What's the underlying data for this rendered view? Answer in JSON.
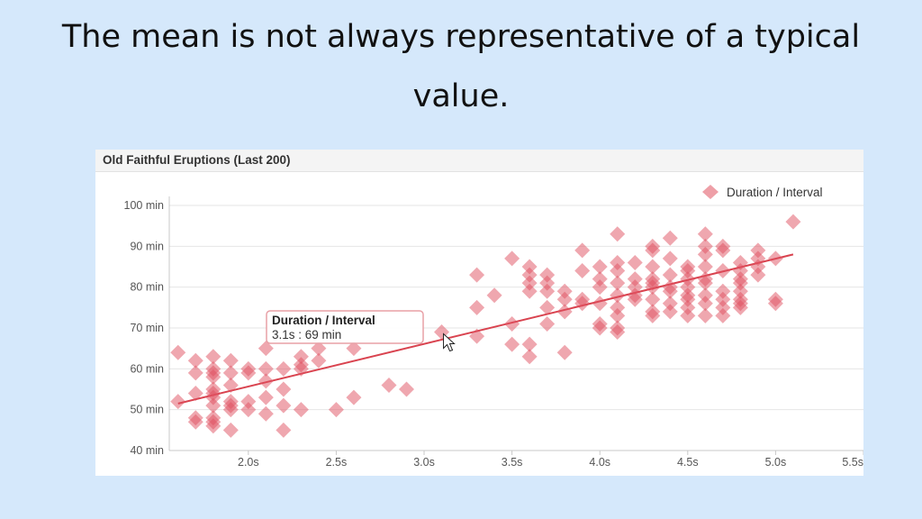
{
  "slide": {
    "title_line1": "The mean is not always representative of a typical",
    "title_line2": "value."
  },
  "colors": {
    "point": "#e0505f",
    "trend": "#d9434f",
    "background": "#d5e8fb"
  },
  "chart_data": {
    "type": "scatter",
    "title": "Old Faithful Eruptions (Last 200)",
    "xlim": [
      1.55,
      5.5
    ],
    "ylim": [
      40,
      100
    ],
    "x_ticks": [
      2.0,
      2.5,
      3.0,
      3.5,
      4.0,
      4.5,
      5.0,
      5.5
    ],
    "x_tick_labels": [
      "2.0s",
      "2.5s",
      "3.0s",
      "3.5s",
      "4.0s",
      "4.5s",
      "5.0s",
      "5.5s"
    ],
    "y_ticks": [
      40,
      50,
      60,
      70,
      80,
      90,
      100
    ],
    "y_tick_labels": [
      "40 min",
      "50 min",
      "60 min",
      "70 min",
      "80 min",
      "90 min",
      "100 min"
    ],
    "grid": true,
    "legend_position": "top-right",
    "series": [
      {
        "name": "Duration / Interval",
        "marker": "diamond",
        "points": [
          [
            1.6,
            64
          ],
          [
            1.6,
            52
          ],
          [
            1.7,
            62
          ],
          [
            1.7,
            59
          ],
          [
            1.7,
            54
          ],
          [
            1.7,
            48
          ],
          [
            1.7,
            47
          ],
          [
            1.8,
            63
          ],
          [
            1.8,
            60
          ],
          [
            1.8,
            59
          ],
          [
            1.8,
            58
          ],
          [
            1.8,
            55
          ],
          [
            1.8,
            54
          ],
          [
            1.8,
            53
          ],
          [
            1.8,
            51
          ],
          [
            1.8,
            48
          ],
          [
            1.8,
            47
          ],
          [
            1.8,
            46
          ],
          [
            1.9,
            62
          ],
          [
            1.9,
            59
          ],
          [
            1.9,
            56
          ],
          [
            1.9,
            52
          ],
          [
            1.9,
            51
          ],
          [
            1.9,
            50
          ],
          [
            1.9,
            45
          ],
          [
            2.0,
            60
          ],
          [
            2.0,
            59
          ],
          [
            2.0,
            52
          ],
          [
            2.0,
            50
          ],
          [
            2.1,
            65
          ],
          [
            2.1,
            60
          ],
          [
            2.1,
            57
          ],
          [
            2.1,
            53
          ],
          [
            2.1,
            49
          ],
          [
            2.2,
            60
          ],
          [
            2.2,
            55
          ],
          [
            2.2,
            51
          ],
          [
            2.2,
            45
          ],
          [
            2.3,
            63
          ],
          [
            2.3,
            61
          ],
          [
            2.3,
            60
          ],
          [
            2.3,
            50
          ],
          [
            2.4,
            65
          ],
          [
            2.4,
            62
          ],
          [
            2.5,
            50
          ],
          [
            2.6,
            65
          ],
          [
            2.6,
            53
          ],
          [
            2.8,
            56
          ],
          [
            2.9,
            55
          ],
          [
            3.1,
            69
          ],
          [
            3.3,
            83
          ],
          [
            3.3,
            75
          ],
          [
            3.3,
            68
          ],
          [
            3.4,
            78
          ],
          [
            3.5,
            87
          ],
          [
            3.5,
            71
          ],
          [
            3.5,
            66
          ],
          [
            3.6,
            85
          ],
          [
            3.6,
            83
          ],
          [
            3.6,
            81
          ],
          [
            3.6,
            79
          ],
          [
            3.6,
            66
          ],
          [
            3.6,
            63
          ],
          [
            3.7,
            83
          ],
          [
            3.7,
            81
          ],
          [
            3.7,
            79
          ],
          [
            3.7,
            75
          ],
          [
            3.7,
            71
          ],
          [
            3.8,
            79
          ],
          [
            3.8,
            77
          ],
          [
            3.8,
            74
          ],
          [
            3.8,
            64
          ],
          [
            3.9,
            89
          ],
          [
            3.9,
            84
          ],
          [
            3.9,
            77
          ],
          [
            3.9,
            76
          ],
          [
            4.0,
            85
          ],
          [
            4.0,
            82
          ],
          [
            4.0,
            80
          ],
          [
            4.0,
            76
          ],
          [
            4.0,
            71
          ],
          [
            4.0,
            70
          ],
          [
            4.1,
            93
          ],
          [
            4.1,
            86
          ],
          [
            4.1,
            84
          ],
          [
            4.1,
            81
          ],
          [
            4.1,
            78
          ],
          [
            4.1,
            75
          ],
          [
            4.1,
            73
          ],
          [
            4.1,
            70
          ],
          [
            4.1,
            69
          ],
          [
            4.2,
            86
          ],
          [
            4.2,
            82
          ],
          [
            4.2,
            80
          ],
          [
            4.2,
            78
          ],
          [
            4.2,
            77
          ],
          [
            4.3,
            90
          ],
          [
            4.3,
            89
          ],
          [
            4.3,
            85
          ],
          [
            4.3,
            82
          ],
          [
            4.3,
            81
          ],
          [
            4.3,
            80
          ],
          [
            4.3,
            77
          ],
          [
            4.3,
            74
          ],
          [
            4.3,
            73
          ],
          [
            4.4,
            92
          ],
          [
            4.4,
            87
          ],
          [
            4.4,
            83
          ],
          [
            4.4,
            80
          ],
          [
            4.4,
            79
          ],
          [
            4.4,
            76
          ],
          [
            4.4,
            74
          ],
          [
            4.5,
            85
          ],
          [
            4.5,
            84
          ],
          [
            4.5,
            82
          ],
          [
            4.5,
            80
          ],
          [
            4.5,
            78
          ],
          [
            4.5,
            77
          ],
          [
            4.5,
            75
          ],
          [
            4.5,
            73
          ],
          [
            4.6,
            93
          ],
          [
            4.6,
            90
          ],
          [
            4.6,
            88
          ],
          [
            4.6,
            85
          ],
          [
            4.6,
            82
          ],
          [
            4.6,
            81
          ],
          [
            4.6,
            78
          ],
          [
            4.6,
            76
          ],
          [
            4.6,
            73
          ],
          [
            4.7,
            90
          ],
          [
            4.7,
            89
          ],
          [
            4.7,
            84
          ],
          [
            4.7,
            79
          ],
          [
            4.7,
            77
          ],
          [
            4.7,
            75
          ],
          [
            4.7,
            73
          ],
          [
            4.8,
            86
          ],
          [
            4.8,
            84
          ],
          [
            4.8,
            82
          ],
          [
            4.8,
            81
          ],
          [
            4.8,
            79
          ],
          [
            4.8,
            77
          ],
          [
            4.8,
            76
          ],
          [
            4.8,
            75
          ],
          [
            4.9,
            89
          ],
          [
            4.9,
            87
          ],
          [
            4.9,
            85
          ],
          [
            4.9,
            83
          ],
          [
            5.0,
            87
          ],
          [
            5.0,
            77
          ],
          [
            5.0,
            76
          ],
          [
            5.1,
            96
          ]
        ]
      }
    ],
    "trendline": {
      "from": [
        1.6,
        51.5
      ],
      "to": [
        5.1,
        88
      ]
    },
    "tooltip": {
      "title": "Duration / Interval",
      "text": "3.1s : 69 min",
      "anchor": [
        3.1,
        69
      ]
    }
  }
}
